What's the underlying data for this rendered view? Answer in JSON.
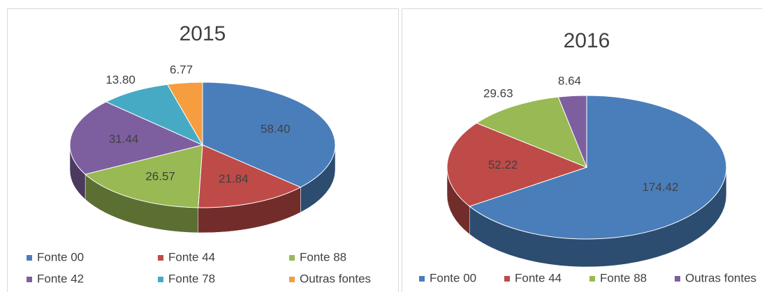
{
  "chart_data": [
    {
      "type": "pie3d",
      "title": "2015",
      "categories": [
        "Fonte 00",
        "Fonte 44",
        "Fonte 88",
        "Fonte 42",
        "Fonte 78",
        "Outras fontes"
      ],
      "values": [
        58.4,
        21.84,
        26.57,
        31.44,
        13.8,
        6.77
      ],
      "value_labels": [
        "58.40",
        "21.84",
        "26.57",
        "31.44",
        "13.80",
        "6.77"
      ],
      "colors": [
        "#4a7ebb",
        "#be4b48",
        "#98b954",
        "#7d5fa0",
        "#46aac5",
        "#f59d3f"
      ],
      "legend": "bottom"
    },
    {
      "type": "pie3d",
      "title": "2016",
      "categories": [
        "Fonte 00",
        "Fonte 44",
        "Fonte 88",
        "Outras fontes"
      ],
      "values": [
        174.42,
        52.22,
        29.63,
        8.64
      ],
      "value_labels": [
        "174.42",
        "52.22",
        "29.63",
        "8.64"
      ],
      "colors": [
        "#4a7ebb",
        "#be4b48",
        "#98b954",
        "#7d5fa0"
      ],
      "legend": "bottom"
    }
  ]
}
